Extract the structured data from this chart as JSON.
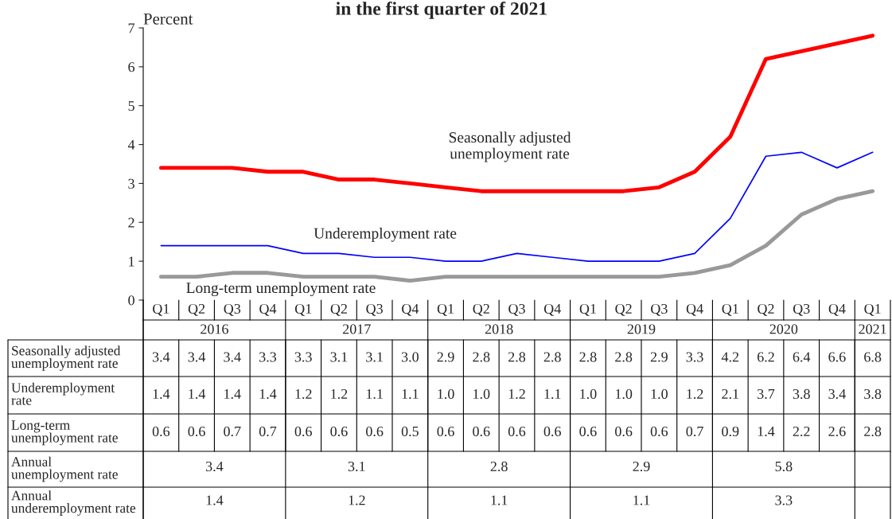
{
  "chart_data": {
    "type": "line",
    "title": "in the first quarter of 2021",
    "ylabel": "Percent",
    "categories": [
      "Q1",
      "Q2",
      "Q3",
      "Q4",
      "Q1",
      "Q2",
      "Q3",
      "Q4",
      "Q1",
      "Q2",
      "Q3",
      "Q4",
      "Q1",
      "Q2",
      "Q3",
      "Q4",
      "Q1",
      "Q2",
      "Q3",
      "Q4",
      "Q1"
    ],
    "series": [
      {
        "name": "Seasonally adjusted unemployment rate",
        "color": "#ff0000",
        "values": [
          3.4,
          3.4,
          3.4,
          3.3,
          3.3,
          3.1,
          3.1,
          3.0,
          2.9,
          2.8,
          2.8,
          2.8,
          2.8,
          2.8,
          2.9,
          3.3,
          4.2,
          6.2,
          6.4,
          6.6,
          6.8
        ],
        "value_labels": [
          "3.4",
          "3.4",
          "3.4",
          "3.3",
          "3.3",
          "3.1",
          "3.1",
          "3.0",
          "2.9",
          "2.8",
          "2.8",
          "2.8",
          "2.8",
          "2.8",
          "2.9",
          "3.3",
          "4.2",
          "6.2",
          "6.4",
          "6.6",
          "6.8"
        ]
      },
      {
        "name": "Underemployment rate",
        "color": "#0000ff",
        "values": [
          1.4,
          1.4,
          1.4,
          1.4,
          1.2,
          1.2,
          1.1,
          1.1,
          1.0,
          1.0,
          1.2,
          1.1,
          1.0,
          1.0,
          1.0,
          1.2,
          2.1,
          3.7,
          3.8,
          3.4,
          3.8
        ],
        "value_labels": [
          "1.4",
          "1.4",
          "1.4",
          "1.4",
          "1.2",
          "1.2",
          "1.1",
          "1.1",
          "1.0",
          "1.0",
          "1.2",
          "1.1",
          "1.0",
          "1.0",
          "1.0",
          "1.2",
          "2.1",
          "3.7",
          "3.8",
          "3.4",
          "3.8"
        ]
      },
      {
        "name": "Long-term unemployment rate",
        "color": "#999999",
        "values": [
          0.6,
          0.6,
          0.7,
          0.7,
          0.6,
          0.6,
          0.6,
          0.5,
          0.6,
          0.6,
          0.6,
          0.6,
          0.6,
          0.6,
          0.6,
          0.7,
          0.9,
          1.4,
          2.2,
          2.6,
          2.8
        ],
        "value_labels": [
          "0.6",
          "0.6",
          "0.7",
          "0.7",
          "0.6",
          "0.6",
          "0.6",
          "0.5",
          "0.6",
          "0.6",
          "0.6",
          "0.6",
          "0.6",
          "0.6",
          "0.6",
          "0.7",
          "0.9",
          "1.4",
          "2.2",
          "2.6",
          "2.8"
        ]
      }
    ],
    "ylim": [
      0,
      7
    ],
    "yticks": [
      0,
      1,
      2,
      3,
      4,
      5,
      6,
      7
    ],
    "legend": false,
    "grid": false,
    "marker": "none",
    "line_style": "solid",
    "annotations": [
      "2016",
      "2017",
      "2018",
      "2019",
      "2020",
      "2021",
      "Annual\nunemployment rate",
      "3.4",
      "3.1",
      "2.8",
      "2.9",
      "5.8",
      "Annual\nunderemployment rate",
      "1.4",
      "1.2",
      "1.1",
      "1.1",
      "3.3"
    ]
  }
}
